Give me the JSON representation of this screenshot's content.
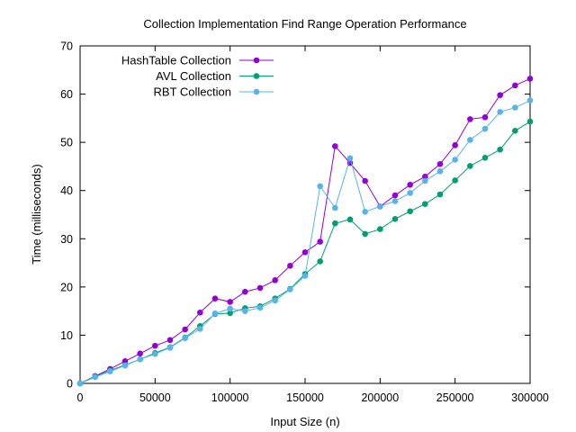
{
  "chart_data": {
    "type": "line",
    "title": "Collection Implementation Find Range Operation Performance",
    "xlabel": "Input Size (n)",
    "ylabel": "Time (milliseconds)",
    "xlim": [
      0,
      300000
    ],
    "ylim": [
      0,
      70
    ],
    "x_ticks": [
      0,
      50000,
      100000,
      150000,
      200000,
      250000,
      300000
    ],
    "y_ticks": [
      0,
      10,
      20,
      30,
      40,
      50,
      60,
      70
    ],
    "grid": false,
    "legend_position": "top-left",
    "x": [
      0,
      10000,
      20000,
      30000,
      40000,
      50000,
      60000,
      70000,
      80000,
      90000,
      100000,
      110000,
      120000,
      130000,
      140000,
      150000,
      160000,
      170000,
      180000,
      190000,
      200000,
      210000,
      220000,
      230000,
      240000,
      250000,
      260000,
      270000,
      280000,
      290000,
      300000
    ],
    "series": [
      {
        "name": "HashTable Collection",
        "color": "#9400d3",
        "values": [
          0,
          1.5,
          3.0,
          4.6,
          6.2,
          7.8,
          9.0,
          11.2,
          14.7,
          17.6,
          16.9,
          19.0,
          19.8,
          21.4,
          24.4,
          27.2,
          29.4,
          49.2,
          45.7,
          42.0,
          36.7,
          39.0,
          41.2,
          42.9,
          45.5,
          49.4,
          54.8,
          55.2,
          59.8,
          61.8,
          63.2
        ]
      },
      {
        "name": "AVL Collection",
        "color": "#009e73",
        "values": [
          0,
          1.4,
          2.7,
          3.8,
          5.0,
          6.3,
          7.5,
          9.5,
          11.9,
          14.4,
          14.6,
          15.6,
          16.0,
          17.6,
          19.6,
          22.7,
          25.3,
          33.2,
          34.0,
          31.0,
          32.0,
          34.1,
          35.7,
          37.2,
          39.2,
          42.1,
          45.1,
          46.8,
          48.5,
          52.4,
          54.3
        ]
      },
      {
        "name": "RBT Collection",
        "color": "#56b4e9",
        "values": [
          0,
          1.3,
          2.5,
          3.7,
          5.0,
          6.1,
          7.4,
          9.4,
          11.3,
          14.5,
          15.5,
          15.0,
          15.7,
          17.2,
          19.5,
          22.3,
          40.9,
          36.4,
          46.7,
          35.6,
          36.7,
          37.8,
          39.5,
          42.0,
          44.0,
          46.4,
          50.5,
          52.8,
          56.3,
          57.2,
          58.7
        ]
      }
    ]
  }
}
